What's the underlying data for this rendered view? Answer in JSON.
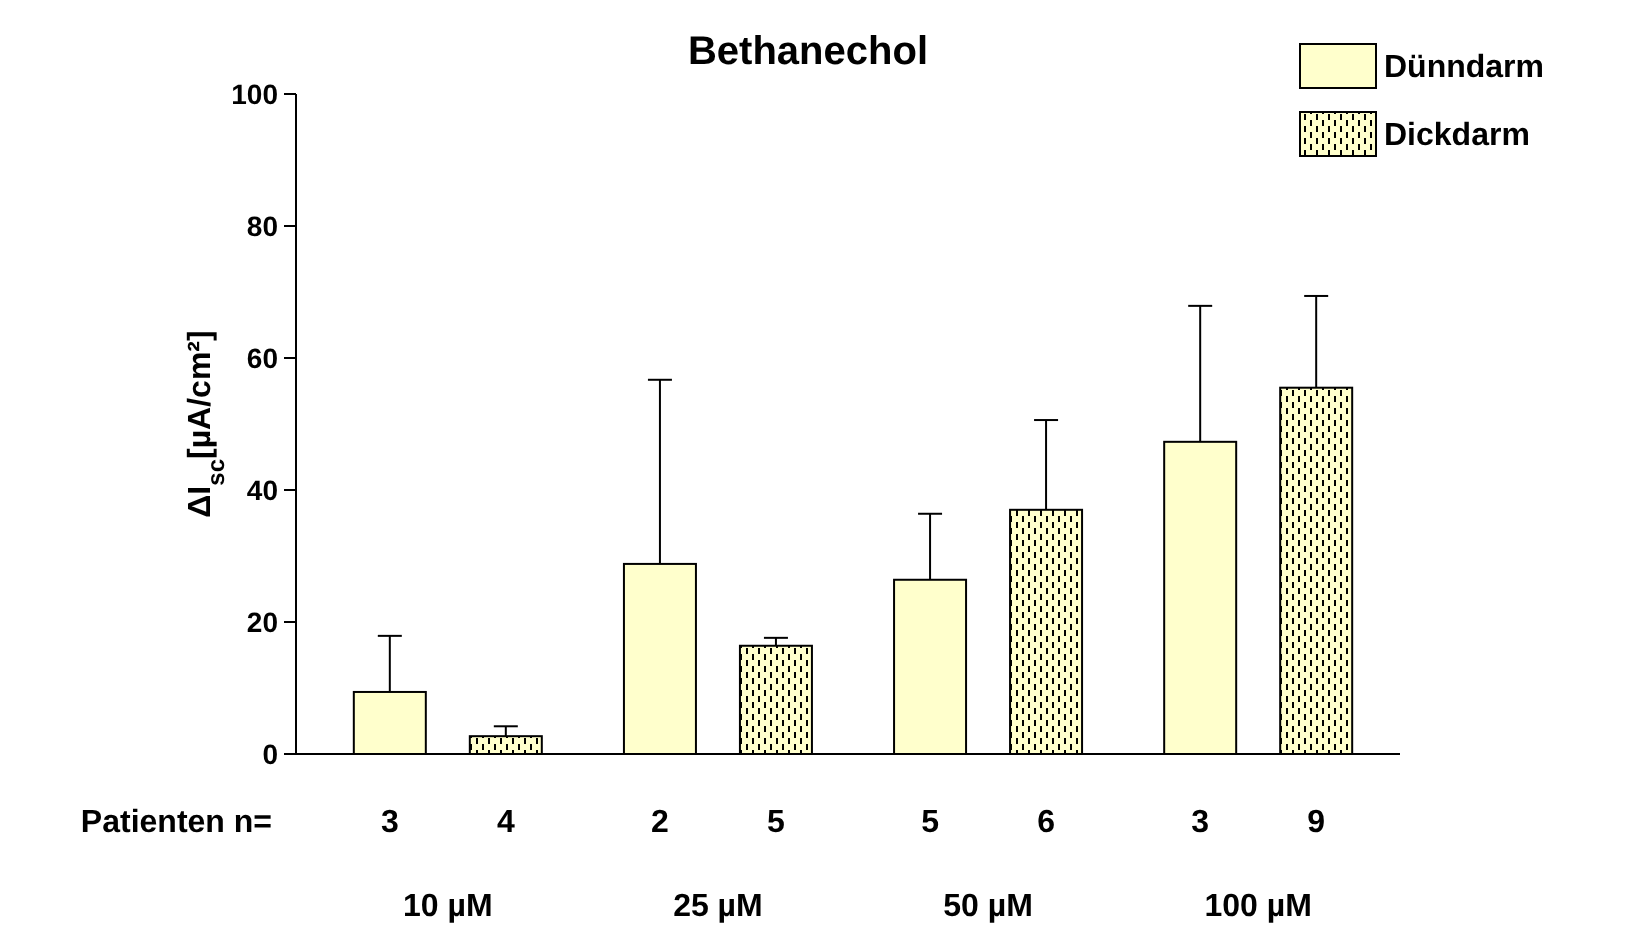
{
  "chart_data": {
    "type": "bar",
    "title": "Bethanechol",
    "ylabel": "ΔI$_{sc}$[µA/cm²]",
    "categories": [
      "10 µM",
      "25 µM",
      "50 µM",
      "100 µM"
    ],
    "series": [
      {
        "name": "Dünndarm",
        "color": "#ffffcc",
        "values": [
          9.4,
          28.8,
          26.4,
          47.3
        ],
        "errors": [
          [
            9.4,
            17.9
          ],
          [
            28.8,
            56.7
          ],
          [
            26.4,
            36.4
          ],
          [
            47.3,
            67.9
          ]
        ]
      },
      {
        "name": "Dickdarm",
        "color": "#ffffcc",
        "values": [
          2.7,
          16.4,
          37,
          55.5
        ],
        "errors": [
          [
            2.7,
            4.2
          ],
          [
            16.4,
            17.6
          ],
          [
            37,
            50.6
          ],
          [
            55.5,
            69.4
          ]
        ]
      }
    ],
    "ylim": [
      0,
      100
    ],
    "yticks": [
      0,
      20,
      40,
      60,
      80,
      100
    ],
    "grid": false,
    "legend": "top right",
    "annotations": [
      "Patienten n=",
      "3",
      "4",
      "2",
      "5",
      "5",
      "6",
      "3",
      "9"
    ]
  }
}
